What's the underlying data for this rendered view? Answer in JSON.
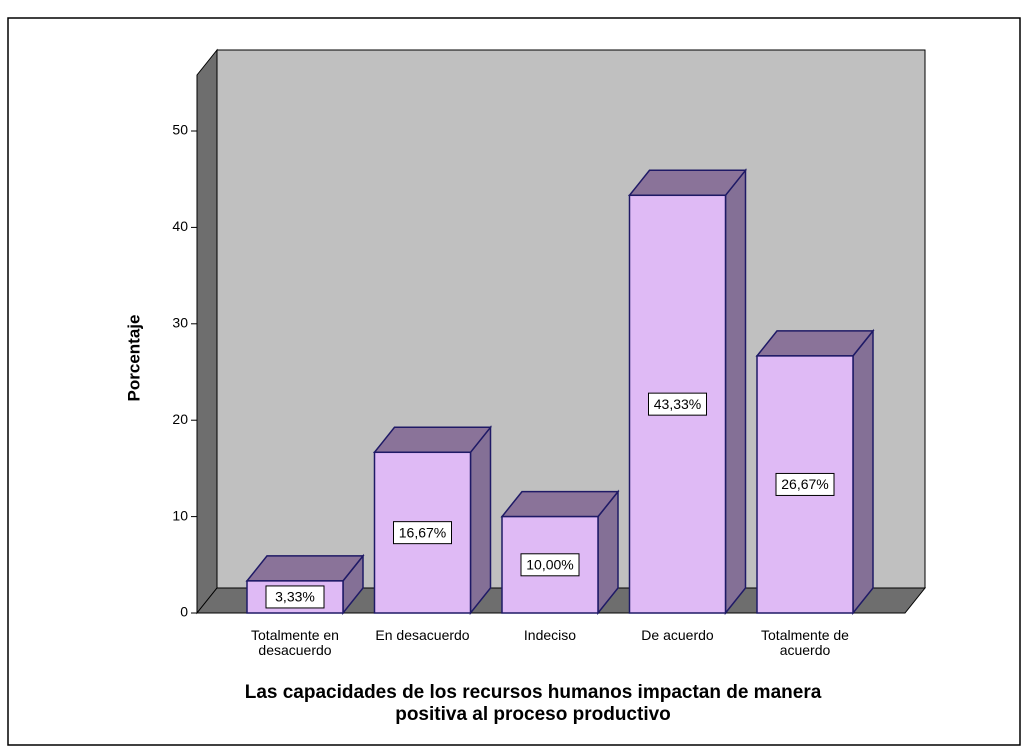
{
  "chart_data": {
    "type": "bar3d",
    "xlabel": "Las capacidades de los recursos humanos impactan de manera positiva al proceso productivo",
    "ylabel": "Porcentaje",
    "categories": [
      "Totalmente en desacuerdo",
      "En desacuerdo",
      "Indeciso",
      "De acuerdo",
      "Totalmente de acuerdo"
    ],
    "values": [
      3.33,
      16.67,
      10.0,
      43.33,
      26.67
    ],
    "value_labels": [
      "3,33%",
      "16,67%",
      "10,00%",
      "43,33%",
      "26,67%"
    ],
    "color": "#dfbaf5",
    "ylim": [
      0,
      50
    ],
    "yticks": [
      0,
      10,
      20,
      30,
      40,
      50
    ]
  }
}
